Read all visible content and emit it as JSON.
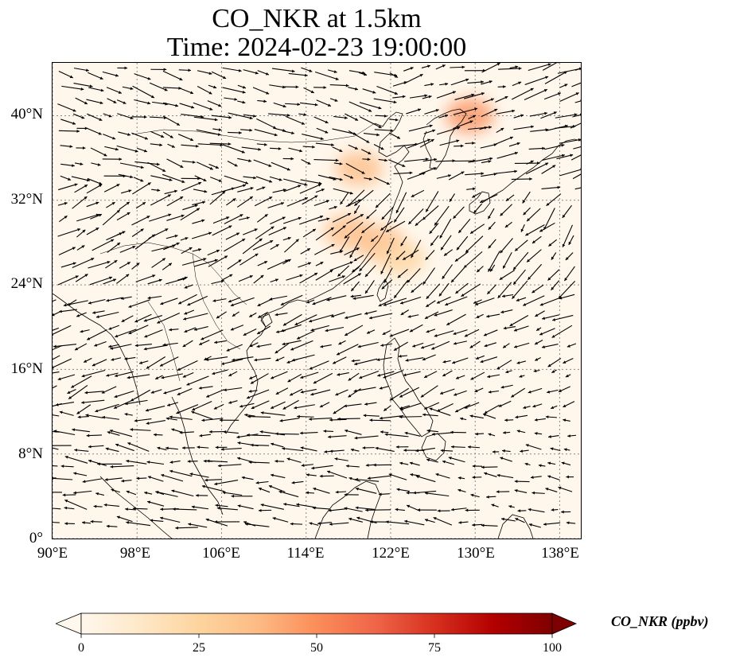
{
  "title": {
    "line1": "CO_NKR at 1.5km",
    "line2": "Time: 2024-02-23 19:00:00"
  },
  "map": {
    "lon_range": [
      90,
      140
    ],
    "lat_range": [
      0,
      45
    ],
    "gridlines": true,
    "background_color": "#fff7ec",
    "coastline_color": "#000000",
    "vector_color": "#000000"
  },
  "axes": {
    "x_ticks": [
      "90°E",
      "98°E",
      "106°E",
      "114°E",
      "122°E",
      "130°E",
      "138°E"
    ],
    "y_ticks": [
      "0°",
      "8°N",
      "16°N",
      "24°N",
      "32°N",
      "40°N"
    ]
  },
  "colorbar": {
    "label": "CO_NKR (ppbv)",
    "ticks": [
      "0",
      "25",
      "50",
      "75",
      "100"
    ],
    "colormap": "OrRd",
    "colors": [
      "#fff7ec",
      "#fee8c8",
      "#fdd49e",
      "#fdbb84",
      "#fc8d59",
      "#ef6548",
      "#d7301f",
      "#b30000",
      "#7f0000"
    ],
    "extend": "both"
  },
  "chart_data": {
    "type": "heatmap",
    "variable": "CO_NKR",
    "units": "ppbv",
    "level": "1.5km",
    "time": "2024-02-23 19:00:00",
    "vmin": 0,
    "vmax": 100,
    "hotspots": [
      {
        "lon": 119,
        "lat": 35,
        "value": 22
      },
      {
        "lon": 118,
        "lat": 29,
        "value": 15
      },
      {
        "lon": 121,
        "lat": 28,
        "value": 12
      },
      {
        "lon": 129.5,
        "lat": 40,
        "value": 25
      },
      {
        "lon": 123,
        "lat": 26.5,
        "value": 10
      }
    ]
  }
}
